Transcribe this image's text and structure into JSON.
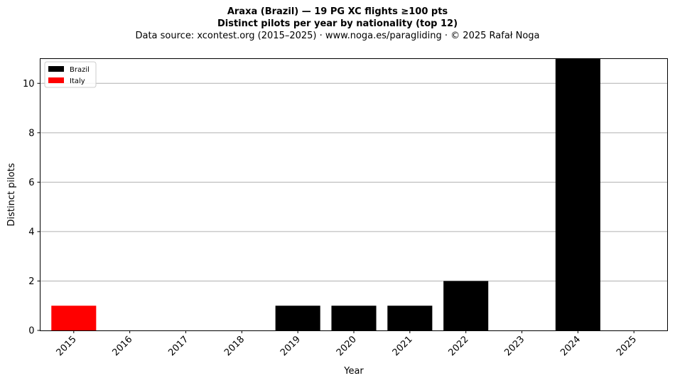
{
  "header": {
    "title": "Araxa (Brazil)  —  19 PG XC flights ≥100 pts",
    "subtitle": "Distinct pilots per year by nationality (top 12)",
    "source": "Data source: xcontest.org (2015–2025)  ·  www.noga.es/paragliding  ·  © 2025 Rafał Noga"
  },
  "chart_data": {
    "type": "bar",
    "stacked": true,
    "xlabel": "Year",
    "ylabel": "Distinct pilots",
    "categories": [
      "2015",
      "2016",
      "2017",
      "2018",
      "2019",
      "2020",
      "2021",
      "2022",
      "2023",
      "2024",
      "2025"
    ],
    "series": [
      {
        "name": "Brazil",
        "color": "#000000",
        "values": [
          0,
          0,
          0,
          0,
          1,
          1,
          1,
          2,
          0,
          11,
          0
        ]
      },
      {
        "name": "Italy",
        "color": "#ff0000",
        "values": [
          1,
          0,
          0,
          0,
          0,
          0,
          0,
          0,
          0,
          0,
          0
        ]
      }
    ],
    "ylim": [
      0,
      11
    ],
    "yticks": [
      0,
      2,
      4,
      6,
      8,
      10
    ],
    "grid": "y",
    "legend_position": "top-left"
  }
}
